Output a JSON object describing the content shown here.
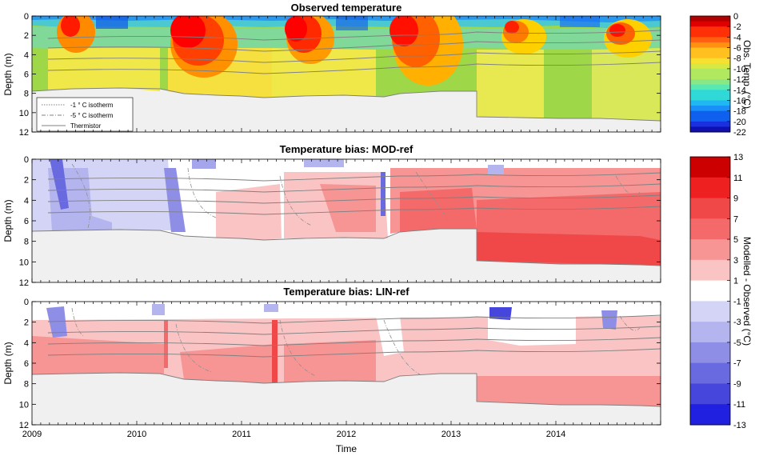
{
  "chart_data": [
    {
      "type": "heatmap",
      "title": "Observed temperature",
      "ylabel": "Depth (m)",
      "y_ticks": [
        "0",
        "2",
        "4",
        "6",
        "8",
        "10",
        "12"
      ],
      "ylim": [
        12,
        0
      ],
      "colorbar_label": "Obs. Temp. (°C)",
      "colorbar_ticks": [
        "0",
        "-2",
        "-4",
        "-6",
        "-8",
        "-10",
        "-12",
        "-14",
        "-16",
        "-18",
        "-20",
        "-22"
      ],
      "colorbar_range": [
        -22,
        0
      ],
      "legend": {
        "entries": [
          "-1 ° C isotherm",
          "-5 ° C isotherm",
          "Thermistor"
        ],
        "placement": "bottom-left"
      }
    },
    {
      "type": "heatmap",
      "title": "Temperature bias: MOD-ref",
      "ylabel": "Depth (m)",
      "y_ticks": [
        "0",
        "2",
        "4",
        "6",
        "8",
        "10",
        "12"
      ],
      "ylim": [
        12,
        0
      ]
    },
    {
      "type": "heatmap",
      "title": "Temperature bias: LIN-ref",
      "ylabel": "Depth (m)",
      "y_ticks": [
        "0",
        "2",
        "4",
        "6",
        "8",
        "10",
        "12"
      ],
      "ylim": [
        12,
        0
      ],
      "xlabel": "Time",
      "x_ticks": [
        "2009",
        "2010",
        "2011",
        "2012",
        "2013",
        "2014"
      ],
      "colorbar_label": "Modelled - Observed (°C)",
      "colorbar_ticks": [
        "13",
        "11",
        "9",
        "7",
        "5",
        "3",
        "1",
        "-1",
        "-3",
        "-5",
        "-7",
        "-9",
        "-11",
        "-13"
      ],
      "colorbar_range": [
        -13,
        13
      ]
    }
  ],
  "colors": {
    "ground": "#f0f0f0",
    "thermistor": "#808080",
    "bias_scale": [
      "#cc0000",
      "#ee2020",
      "#f04848",
      "#f46a6a",
      "#f79494",
      "#fbc4c4",
      "#ffffff",
      "#d4d4f6",
      "#b4b4ee",
      "#8e8ee6",
      "#6a6ae0",
      "#4646dd",
      "#2020e0"
    ]
  }
}
